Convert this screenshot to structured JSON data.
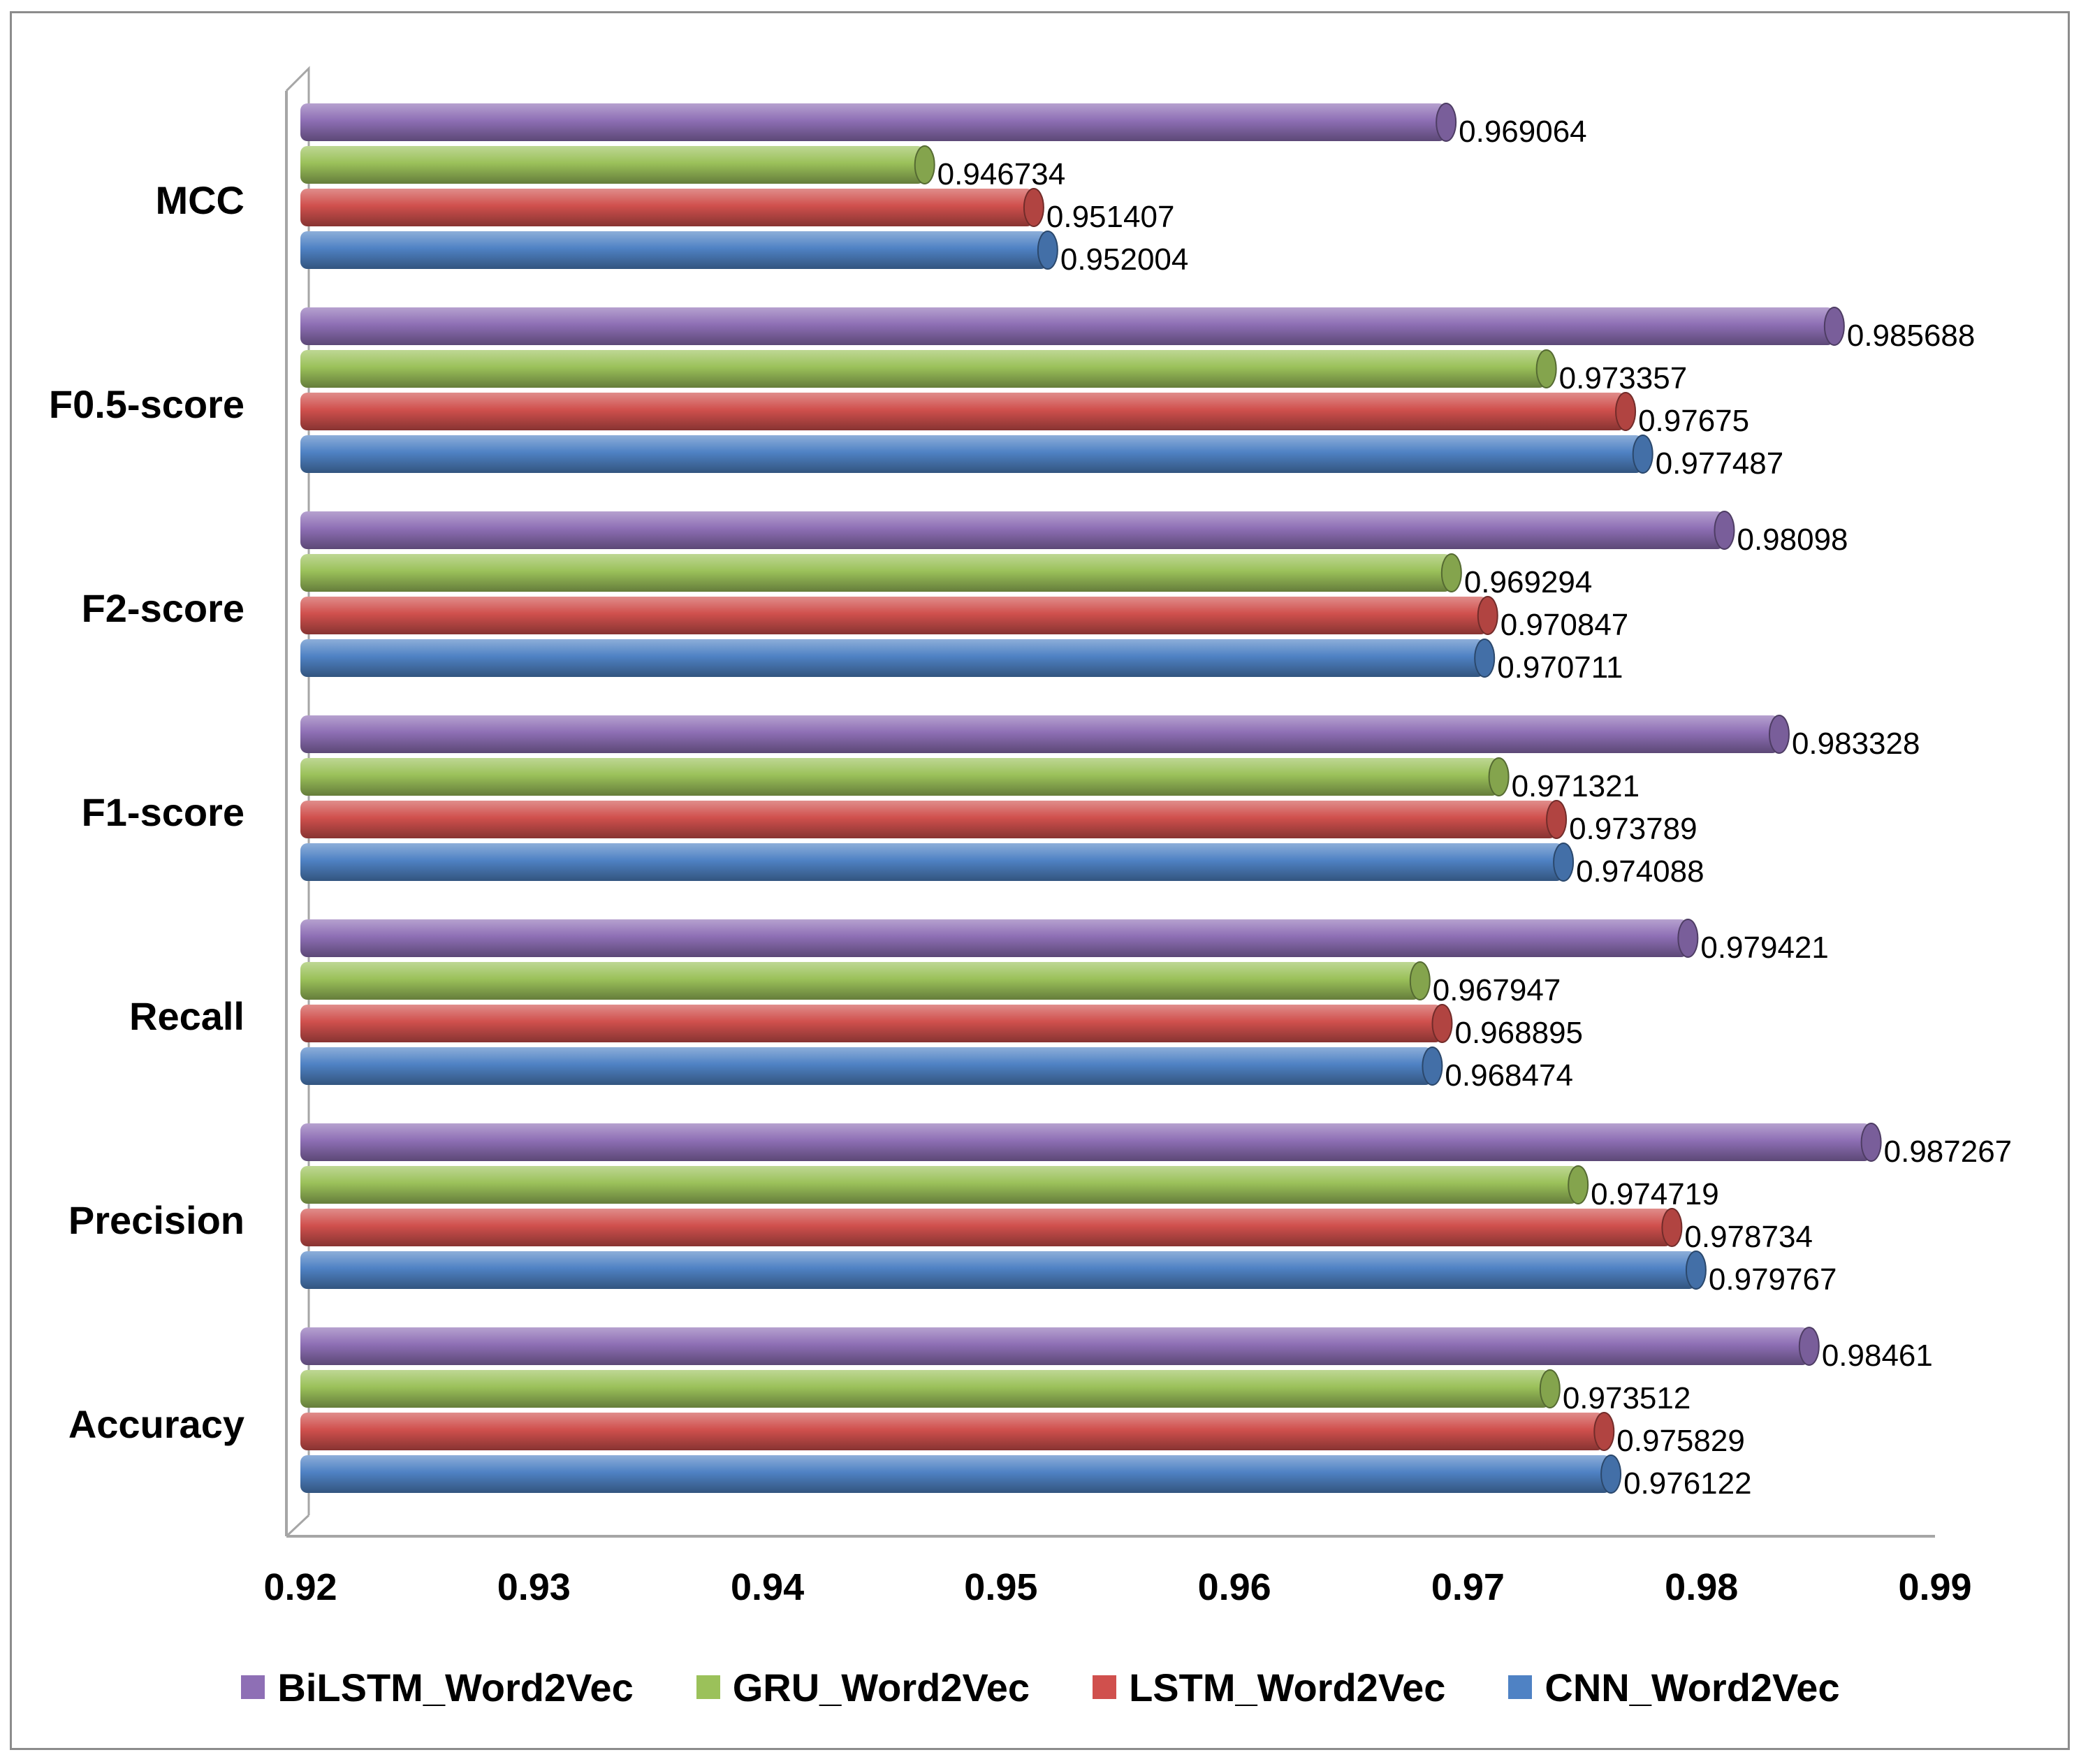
{
  "chart_data": {
    "type": "bar",
    "orientation": "horizontal",
    "title": "",
    "xlabel": "",
    "ylabel": "",
    "xlim": [
      0.92,
      0.99
    ],
    "ticks": [
      "0.92",
      "0.93",
      "0.94",
      "0.95",
      "0.96",
      "0.97",
      "0.98",
      "0.99"
    ],
    "tick_values": [
      0.92,
      0.93,
      0.94,
      0.95,
      0.96,
      0.97,
      0.98,
      0.99
    ],
    "categories": [
      "MCC",
      "F0.5-score",
      "F2-score",
      "F1-score",
      "Recall",
      "Precision",
      "Accuracy"
    ],
    "series": [
      {
        "name": "BiLSTM_Word2Vec",
        "color": "#8e6fb5",
        "values": [
          0.969064,
          0.985688,
          0.98098,
          0.983328,
          0.979421,
          0.987267,
          0.98461
        ],
        "labels": [
          "0.969064",
          "0.985688",
          "0.98098",
          "0.983328",
          "0.979421",
          "0.987267",
          "0.98461"
        ]
      },
      {
        "name": "GRU_Word2Vec",
        "color": "#9bc15a",
        "values": [
          0.946734,
          0.973357,
          0.969294,
          0.971321,
          0.967947,
          0.974719,
          0.973512
        ],
        "labels": [
          "0.946734",
          "0.973357",
          "0.969294",
          "0.971321",
          "0.967947",
          "0.974719",
          "0.973512"
        ]
      },
      {
        "name": "LSTM_Word2Vec",
        "color": "#d0504d",
        "values": [
          0.951407,
          0.97675,
          0.970847,
          0.973789,
          0.968895,
          0.978734,
          0.975829
        ],
        "labels": [
          "0.951407",
          "0.97675",
          "0.970847",
          "0.973789",
          "0.968895",
          "0.978734",
          "0.975829"
        ]
      },
      {
        "name": "CNN_Word2Vec",
        "color": "#4f82c4",
        "values": [
          0.952004,
          0.977487,
          0.970711,
          0.974088,
          0.968474,
          0.979767,
          0.976122
        ],
        "labels": [
          "0.952004",
          "0.977487",
          "0.970711",
          "0.974088",
          "0.968474",
          "0.979767",
          "0.976122"
        ]
      }
    ],
    "legend_position": "bottom",
    "grid": false
  }
}
